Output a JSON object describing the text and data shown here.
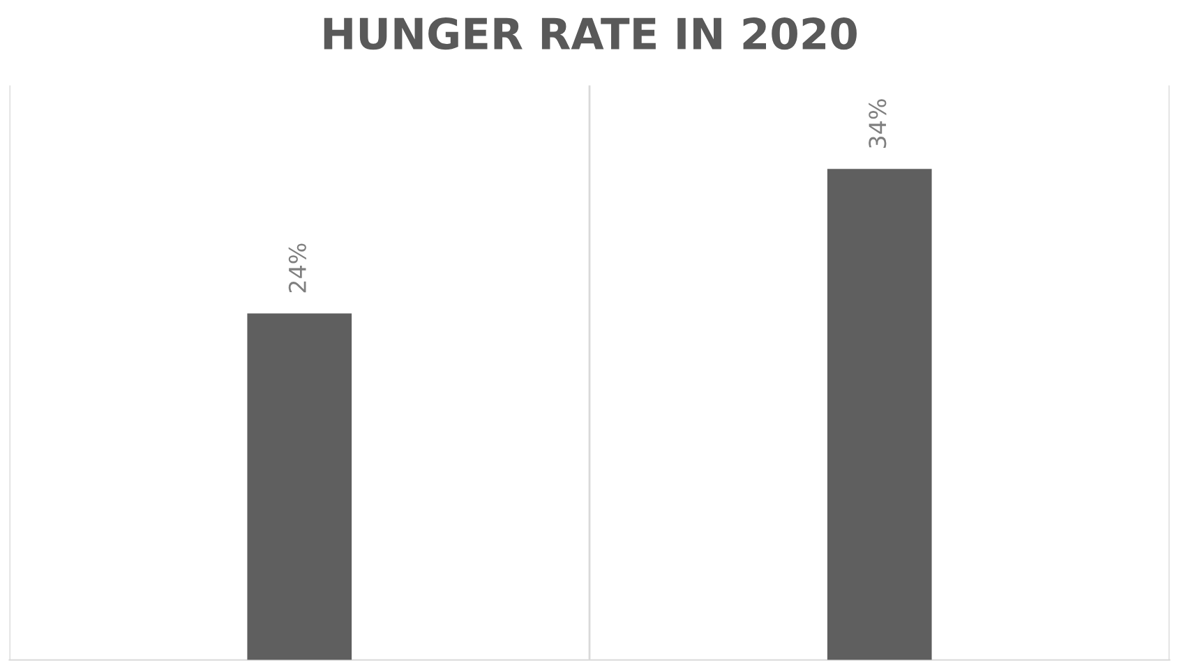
{
  "chart_data": {
    "type": "bar",
    "title": "HUNGER RATE IN 2020",
    "categories": [
      null,
      null
    ],
    "values": [
      24,
      34
    ],
    "value_labels": [
      "24%",
      "34%"
    ],
    "color": "#5f5f5f",
    "grid": "x"
  }
}
